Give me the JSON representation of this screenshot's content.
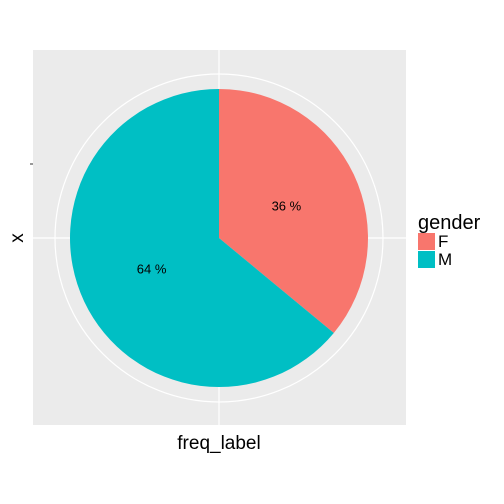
{
  "chart_data": {
    "type": "pie",
    "categories": [
      "F",
      "M"
    ],
    "values": [
      36,
      64
    ],
    "slice_labels": [
      "36 %",
      "64 %"
    ],
    "xlabel": "freq_label",
    "ylabel": "x",
    "legend": {
      "title": "gender",
      "position": "right",
      "entries": [
        "F",
        "M"
      ]
    },
    "colors": [
      "#F8766D",
      "#00BFC4"
    ],
    "panel_background": "#EBEBEB",
    "grid": true
  }
}
